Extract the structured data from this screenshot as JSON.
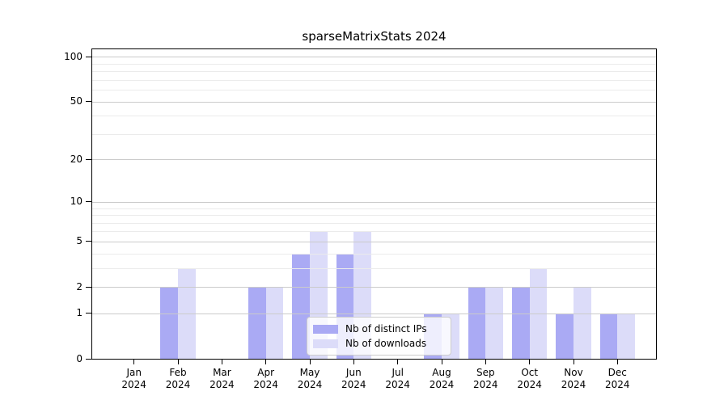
{
  "title": "sparseMatrixStats 2024",
  "colors": {
    "ips_bar": "#aaaaf4",
    "downloads_bar": "#dcdcf9",
    "major_grid": "#cbcbcb",
    "minor_grid": "#ebebeb",
    "axis": "#000000",
    "legend_border": "#cccccc"
  },
  "legend": {
    "items": [
      {
        "key": "ips",
        "label": "Nb of distinct IPs"
      },
      {
        "key": "downloads",
        "label": "Nb of downloads"
      }
    ]
  },
  "x_axis": {
    "year_label": "2024"
  },
  "chart_data": {
    "type": "bar",
    "title": "sparseMatrixStats 2024",
    "categories": [
      "Jan",
      "Feb",
      "Mar",
      "Apr",
      "May",
      "Jun",
      "Jul",
      "Aug",
      "Sep",
      "Oct",
      "Nov",
      "Dec"
    ],
    "category_sublabel": "2024",
    "series": [
      {
        "name": "Nb of distinct IPs",
        "values": [
          0,
          2,
          0,
          2,
          4,
          4,
          0,
          1,
          2,
          2,
          1,
          1
        ]
      },
      {
        "name": "Nb of downloads",
        "values": [
          0,
          3,
          0,
          2,
          6,
          6,
          0,
          1,
          2,
          3,
          2,
          1
        ]
      }
    ],
    "y_scale": "log10(1+x)",
    "y_major_ticks": [
      0,
      1,
      2,
      5,
      10,
      20,
      50,
      100
    ],
    "y_minor_ticks": [
      3,
      4,
      6,
      7,
      8,
      9,
      30,
      40,
      60,
      70,
      80,
      90
    ],
    "ylim": [
      0,
      112
    ],
    "grid": true,
    "legend_position": "lower center"
  }
}
